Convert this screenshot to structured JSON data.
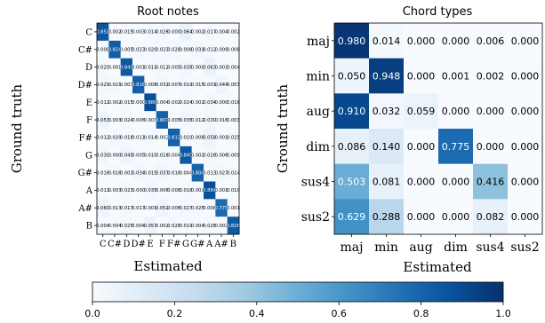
{
  "chart_data": [
    {
      "type": "heatmap",
      "title": "Root notes",
      "xlabel": "Estimated",
      "ylabel": "Ground truth",
      "x_categories": [
        "C",
        "C#",
        "D",
        "D#",
        "E",
        "F",
        "F#",
        "G",
        "G#",
        "A",
        "A#",
        "B"
      ],
      "y_categories": [
        "C",
        "C#",
        "D",
        "D#",
        "E",
        "F",
        "F#",
        "G",
        "G#",
        "A",
        "A#",
        "B"
      ],
      "values": [
        [
          0.851,
          0.002,
          0.015,
          0.003,
          0.014,
          0.026,
          0.0,
          0.064,
          0.002,
          0.017,
          0.004,
          0.002
        ],
        [
          0.008,
          0.824,
          0.005,
          0.023,
          0.02,
          0.023,
          0.028,
          0.008,
          0.031,
          0.012,
          0.009,
          0.008
        ],
        [
          0.02,
          0.001,
          0.845,
          0.001,
          0.011,
          0.012,
          0.005,
          0.035,
          0.0,
          0.063,
          0.003,
          0.004
        ],
        [
          0.029,
          0.021,
          0.003,
          0.818,
          0.008,
          0.032,
          0.007,
          0.019,
          0.015,
          0.001,
          0.044,
          0.003
        ],
        [
          0.012,
          0.002,
          0.015,
          0.0,
          0.886,
          0.004,
          0.002,
          0.024,
          0.002,
          0.034,
          0.0,
          0.018
        ],
        [
          0.053,
          0.003,
          0.024,
          0.006,
          0.003,
          0.807,
          0.005,
          0.035,
          0.012,
          0.03,
          0.016,
          0.003
        ],
        [
          0.012,
          0.029,
          0.018,
          0.011,
          0.014,
          0.002,
          0.812,
          0.01,
          0.008,
          0.058,
          0.001,
          0.025
        ],
        [
          0.03,
          0.0,
          0.045,
          0.005,
          0.01,
          0.016,
          0.004,
          0.845,
          0.002,
          0.026,
          0.006,
          0.009
        ],
        [
          0.016,
          0.016,
          0.003,
          0.034,
          0.015,
          0.037,
          0.016,
          0.004,
          0.804,
          0.013,
          0.027,
          0.014
        ],
        [
          0.011,
          0.003,
          0.023,
          0.0,
          0.035,
          0.006,
          0.008,
          0.018,
          0.001,
          0.884,
          0.001,
          0.01
        ],
        [
          0.06,
          0.013,
          0.017,
          0.017,
          0.001,
          0.052,
          0.006,
          0.027,
          0.025,
          0.008,
          0.775,
          0.001
        ],
        [
          0.004,
          0.004,
          0.025,
          0.004,
          0.057,
          0.002,
          0.026,
          0.019,
          0.004,
          0.026,
          0.002,
          0.828
        ]
      ]
    },
    {
      "type": "heatmap",
      "title": "Chord types",
      "xlabel": "Estimated",
      "ylabel": "Ground truth",
      "x_categories": [
        "maj",
        "min",
        "aug",
        "dim",
        "sus4",
        "sus2"
      ],
      "y_categories": [
        "maj",
        "min",
        "aug",
        "dim",
        "sus4",
        "sus2"
      ],
      "values": [
        [
          0.98,
          0.014,
          0.0,
          0.0,
          0.006,
          0.0
        ],
        [
          0.05,
          0.948,
          0.0,
          0.001,
          0.002,
          0.0
        ],
        [
          0.91,
          0.032,
          0.059,
          0.0,
          0.0,
          0.0
        ],
        [
          0.086,
          0.14,
          0.0,
          0.775,
          0.0,
          0.0
        ],
        [
          0.503,
          0.081,
          0.0,
          0.0,
          0.416,
          0.0
        ],
        [
          0.629,
          0.288,
          0.0,
          0.0,
          0.082,
          0.0
        ]
      ]
    }
  ],
  "colorbar": {
    "ticks": [
      "0.0",
      "0.2",
      "0.4",
      "0.6",
      "0.8",
      "1.0"
    ],
    "range": [
      0,
      1
    ],
    "colors": [
      "#f7fbff",
      "#deebf7",
      "#c6dbef",
      "#9ecae1",
      "#6baed6",
      "#4292c6",
      "#2171b5",
      "#08519c",
      "#08306b"
    ]
  }
}
